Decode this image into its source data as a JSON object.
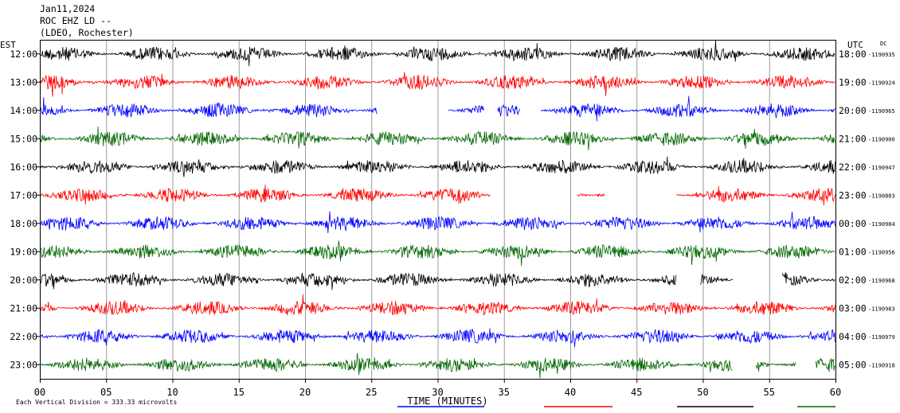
{
  "header": {
    "date": "Jan11,2024",
    "station": "ROC EHZ LD --",
    "network": "(LDEO, Rochester)"
  },
  "footer": {
    "scale_note": "Each Vertical Division =  333.33 microvolts"
  },
  "chart_data": {
    "type": "line",
    "title": "",
    "xlabel": "TIME (MINUTES)",
    "left_axis_label": "EST",
    "right_axis_label": "UTC",
    "dc_label": "DC",
    "xlim": [
      0,
      60
    ],
    "x_ticks": [
      "00",
      "05",
      "10",
      "15",
      "20",
      "25",
      "30",
      "35",
      "40",
      "45",
      "50",
      "55",
      "60"
    ],
    "grid": true,
    "trace_colors": [
      "#000000",
      "#ff0000",
      "#0000ff",
      "#006600"
    ],
    "rows": [
      {
        "est": "12:00",
        "utc": "18:00",
        "dc": "-1190935",
        "color": "#000000",
        "gaps": []
      },
      {
        "est": "13:00",
        "utc": "19:00",
        "dc": "-1190924",
        "color": "#ff0000",
        "gaps": []
      },
      {
        "est": "14:00",
        "utc": "20:00",
        "dc": "-1190965",
        "color": "#0000ff",
        "gaps": [
          [
            25.5,
            30.8
          ],
          [
            33.5,
            34.5
          ],
          [
            36.2,
            37.8
          ]
        ]
      },
      {
        "est": "15:00",
        "utc": "21:00",
        "dc": "-1190900",
        "color": "#006600",
        "gaps": []
      },
      {
        "est": "16:00",
        "utc": "22:00",
        "dc": "-1190947",
        "color": "#000000",
        "gaps": []
      },
      {
        "est": "17:00",
        "utc": "23:00",
        "dc": "-1190803",
        "color": "#ff0000",
        "gaps": [
          [
            34,
            40.5
          ],
          [
            42.6,
            48
          ]
        ]
      },
      {
        "est": "18:00",
        "utc": "00:00",
        "dc": "-1190984",
        "color": "#0000ff",
        "gaps": []
      },
      {
        "est": "19:00",
        "utc": "01:00",
        "dc": "-1190956",
        "color": "#006600",
        "gaps": []
      },
      {
        "est": "20:00",
        "utc": "02:00",
        "dc": "-1190968",
        "color": "#000000",
        "gaps": [
          [
            48,
            49.8
          ],
          [
            52.3,
            56
          ]
        ]
      },
      {
        "est": "21:00",
        "utc": "03:00",
        "dc": "-1190983",
        "color": "#ff0000",
        "gaps": []
      },
      {
        "est": "22:00",
        "utc": "04:00",
        "dc": "-1190979",
        "color": "#0000ff",
        "gaps": []
      },
      {
        "est": "23:00",
        "utc": "05:00",
        "dc": "-1190918",
        "color": "#006600",
        "gaps": [
          [
            52.2,
            54
          ],
          [
            57,
            58.5
          ]
        ]
      }
    ]
  }
}
